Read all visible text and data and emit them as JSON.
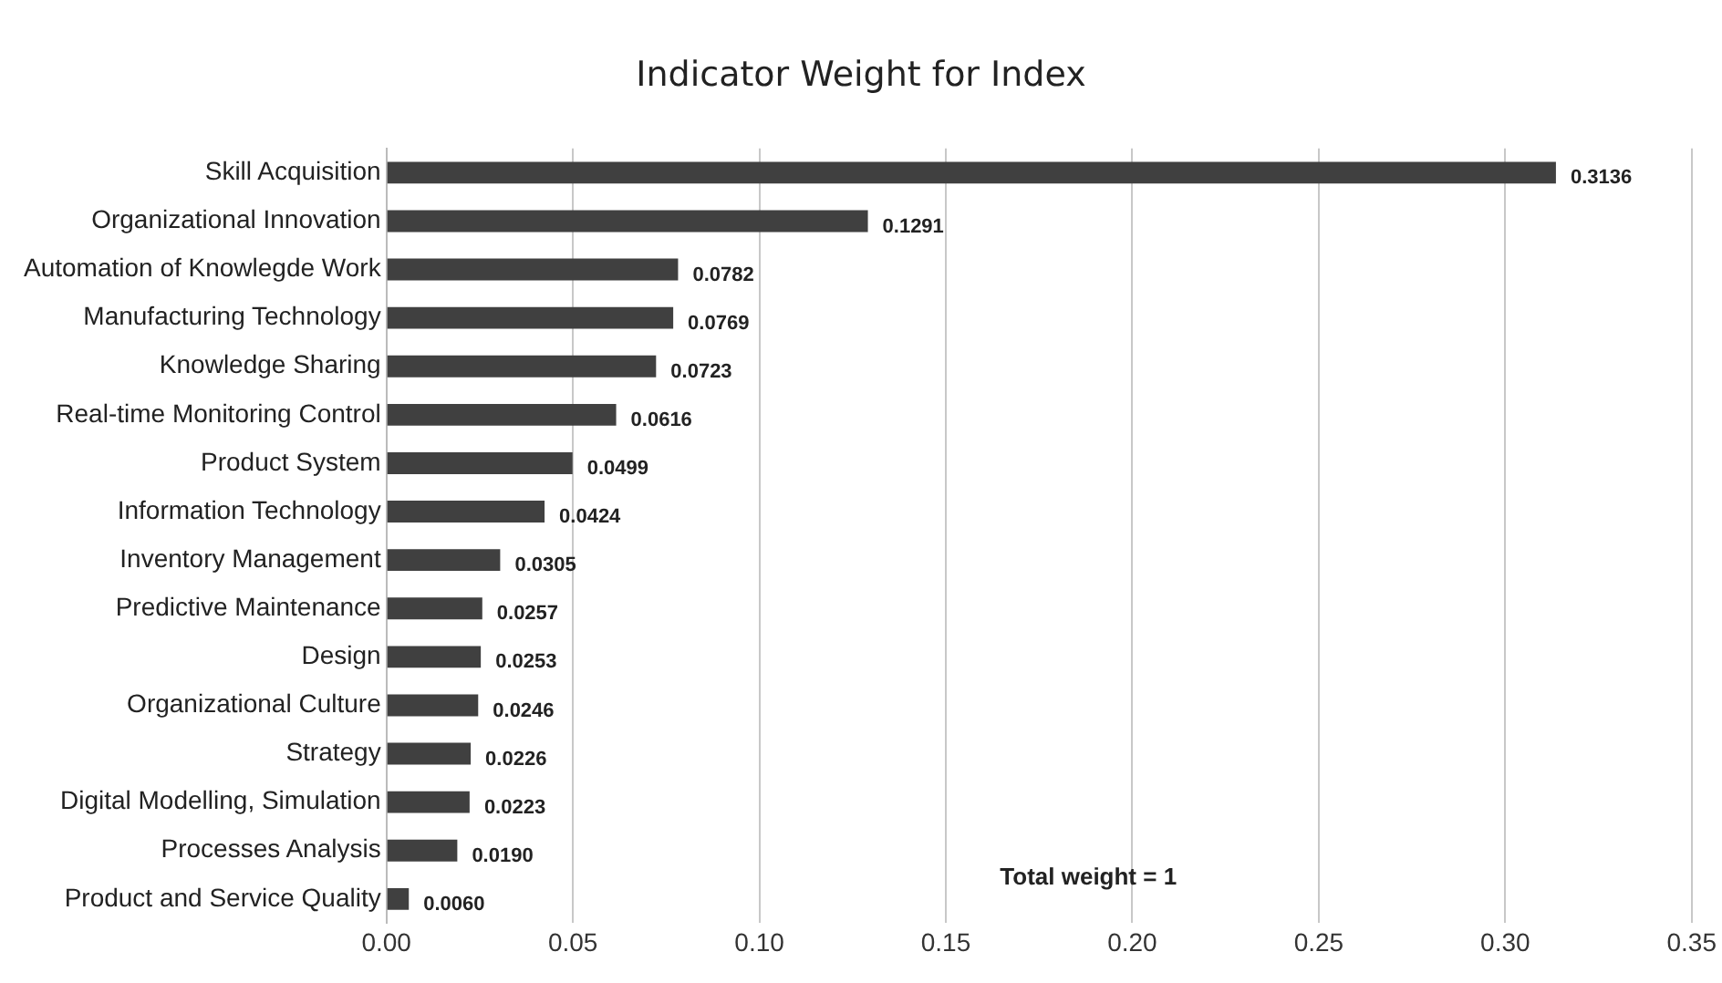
{
  "chart_data": {
    "type": "bar",
    "orientation": "horizontal",
    "title": "Indicator Weight for Index",
    "categories": [
      "Skill Acquisition",
      "Organizational Innovation",
      "Automation of Knowlegde Work",
      "Manufacturing Technology",
      "Knowledge Sharing",
      "Real-time Monitoring Control",
      "Product System",
      "Information Technology",
      "Inventory Management",
      "Predictive Maintenance",
      "Design",
      "Organizational Culture",
      "Strategy",
      "Digital Modelling, Simulation",
      "Processes Analysis",
      "Product and Service Quality"
    ],
    "values": [
      0.3136,
      0.1291,
      0.0782,
      0.0769,
      0.0723,
      0.0616,
      0.0499,
      0.0424,
      0.0305,
      0.0257,
      0.0253,
      0.0246,
      0.0226,
      0.0223,
      0.019,
      0.006
    ],
    "value_labels": [
      "0.3136",
      "0.1291",
      "0.0782",
      "0.0769",
      "0.0723",
      "0.0616",
      "0.0499",
      "0.0424",
      "0.0305",
      "0.0257",
      "0.0253",
      "0.0246",
      "0.0226",
      "0.0223",
      "0.0190",
      "0.0060"
    ],
    "color": "#404040",
    "xlim": [
      0,
      0.35
    ],
    "xticks": [
      {
        "value": 0,
        "label": "0.00"
      },
      {
        "value": 0.05,
        "label": "0.05"
      },
      {
        "value": 0.1,
        "label": "0.10"
      },
      {
        "value": 0.15,
        "label": "0.15"
      },
      {
        "value": 0.2,
        "label": "0.20"
      },
      {
        "value": 0.25,
        "label": "0.25"
      },
      {
        "value": 0.3,
        "label": "0.30"
      },
      {
        "value": 0.35,
        "label": "0.35"
      }
    ],
    "grid": "x",
    "annotations": [
      "Total weight = 1"
    ]
  }
}
